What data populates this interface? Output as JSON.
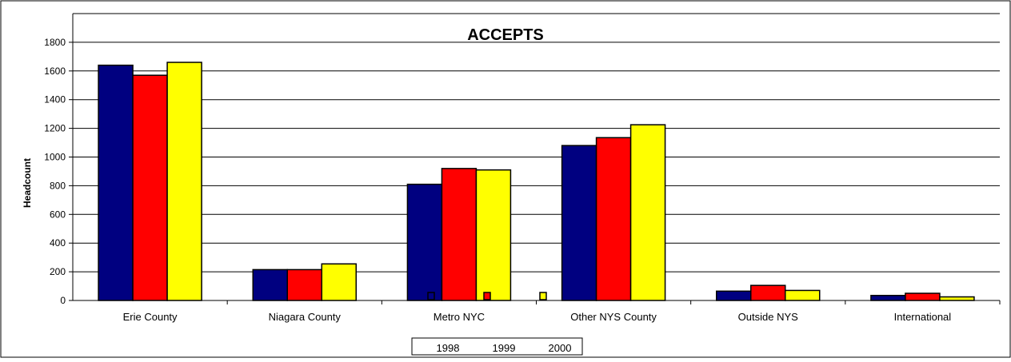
{
  "chart_data": {
    "type": "bar",
    "title": "ACCEPTS",
    "ylabel": "Headcount",
    "xlabel": "",
    "categories": [
      "Erie County",
      "Niagara County",
      "Metro NYC",
      "Other NYS County",
      "Outside NYS",
      "International"
    ],
    "series": [
      {
        "name": "1998",
        "color": "#000080",
        "values": [
          1640,
          215,
          810,
          1080,
          65,
          35
        ]
      },
      {
        "name": "1999",
        "color": "#ff0000",
        "values": [
          1570,
          215,
          920,
          1135,
          105,
          50
        ]
      },
      {
        "name": "2000",
        "color": "#ffff00",
        "values": [
          1660,
          255,
          910,
          1225,
          70,
          25
        ]
      }
    ],
    "ylim": [
      0,
      2000
    ],
    "yticks": [
      "0",
      "200",
      "400",
      "600",
      "800",
      "1000",
      "1200",
      "1400",
      "1600",
      "1800"
    ],
    "grid": true,
    "legend": "bottom-center"
  }
}
